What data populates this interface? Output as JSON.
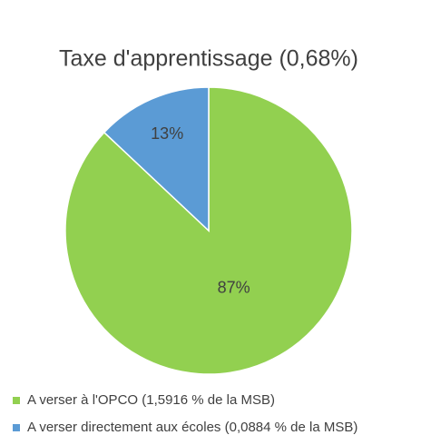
{
  "chart_data": {
    "type": "pie",
    "title": "Taxe d'apprentissage (0,68%)",
    "categories": [
      "A verser à l'OPCO (1,5916 % de la MSB)",
      "A verser directement aux écoles (0,0884 % de la MSB)"
    ],
    "values": [
      87,
      13
    ],
    "value_labels": [
      "87%",
      "13%"
    ],
    "colors": [
      "#92d050",
      "#5b9bd5"
    ]
  }
}
